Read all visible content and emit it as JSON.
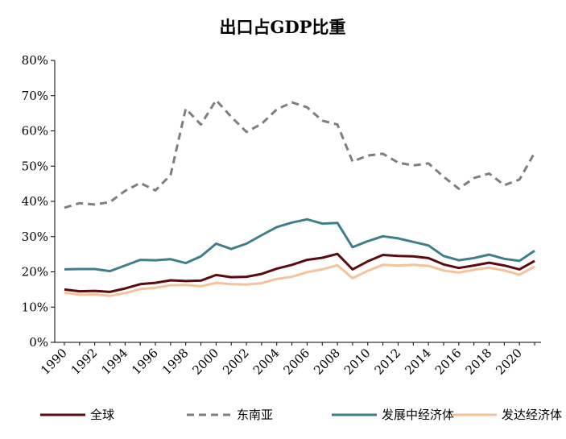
{
  "chart_data": {
    "type": "line",
    "title": "出口占GDP比重",
    "xlabel": "",
    "ylabel": "",
    "x": [
      1990,
      1991,
      1992,
      1993,
      1994,
      1995,
      1996,
      1997,
      1998,
      1999,
      2000,
      2001,
      2002,
      2003,
      2004,
      2005,
      2006,
      2007,
      2008,
      2009,
      2010,
      2011,
      2012,
      2013,
      2014,
      2015,
      2016,
      2017,
      2018,
      2019,
      2020,
      2021
    ],
    "x_tick_labels": [
      "1990",
      "1992",
      "1994",
      "1996",
      "1998",
      "2000",
      "2002",
      "2004",
      "2006",
      "2008",
      "2010",
      "2012",
      "2014",
      "2016",
      "2018",
      "2020"
    ],
    "y_tick_labels": [
      "0%",
      "10%",
      "20%",
      "30%",
      "40%",
      "50%",
      "60%",
      "70%",
      "80%"
    ],
    "ylim": [
      0,
      80
    ],
    "legend_position": "bottom",
    "series": [
      {
        "name": "全球",
        "color": "#5c0a0f",
        "dash": "solid",
        "values": [
          15.0,
          14.5,
          14.6,
          14.3,
          15.3,
          16.5,
          16.9,
          17.6,
          17.4,
          17.5,
          19.1,
          18.5,
          18.6,
          19.4,
          20.9,
          22.0,
          23.4,
          24.0,
          25.1,
          20.7,
          23.0,
          24.8,
          24.5,
          24.4,
          23.9,
          22.1,
          21.1,
          21.8,
          22.6,
          21.8,
          20.7,
          23.1
        ]
      },
      {
        "name": "东南亚",
        "color": "#7f7f7f",
        "dash": "dashed",
        "values": [
          38.2,
          39.5,
          39.1,
          39.8,
          43.0,
          45.2,
          43.1,
          47.5,
          66.3,
          61.8,
          68.7,
          64.0,
          59.7,
          62.0,
          66.1,
          68.1,
          66.7,
          62.9,
          61.8,
          51.3,
          53.0,
          53.5,
          51.0,
          50.2,
          50.8,
          47.0,
          43.6,
          46.6,
          47.9,
          44.6,
          46.2,
          53.8
        ]
      },
      {
        "name": "发展中经济体",
        "color": "#3e7f8e",
        "dash": "solid",
        "values": [
          20.7,
          20.8,
          20.8,
          20.2,
          21.8,
          23.4,
          23.3,
          23.6,
          22.5,
          24.4,
          28.0,
          26.5,
          28.0,
          30.4,
          32.7,
          34.0,
          34.9,
          33.7,
          33.9,
          27.0,
          28.7,
          30.1,
          29.5,
          28.5,
          27.5,
          24.5,
          23.3,
          23.9,
          24.9,
          23.7,
          23.1,
          26.0
        ]
      },
      {
        "name": "发达经济体",
        "color": "#f6c298",
        "dash": "solid",
        "values": [
          14.1,
          13.5,
          13.6,
          13.2,
          14.0,
          15.1,
          15.5,
          16.2,
          16.3,
          15.9,
          16.9,
          16.5,
          16.4,
          16.8,
          18.0,
          18.6,
          19.9,
          20.7,
          21.9,
          18.2,
          20.3,
          22.0,
          21.8,
          22.0,
          21.7,
          20.4,
          19.8,
          20.6,
          21.2,
          20.4,
          19.2,
          21.5
        ]
      }
    ]
  }
}
